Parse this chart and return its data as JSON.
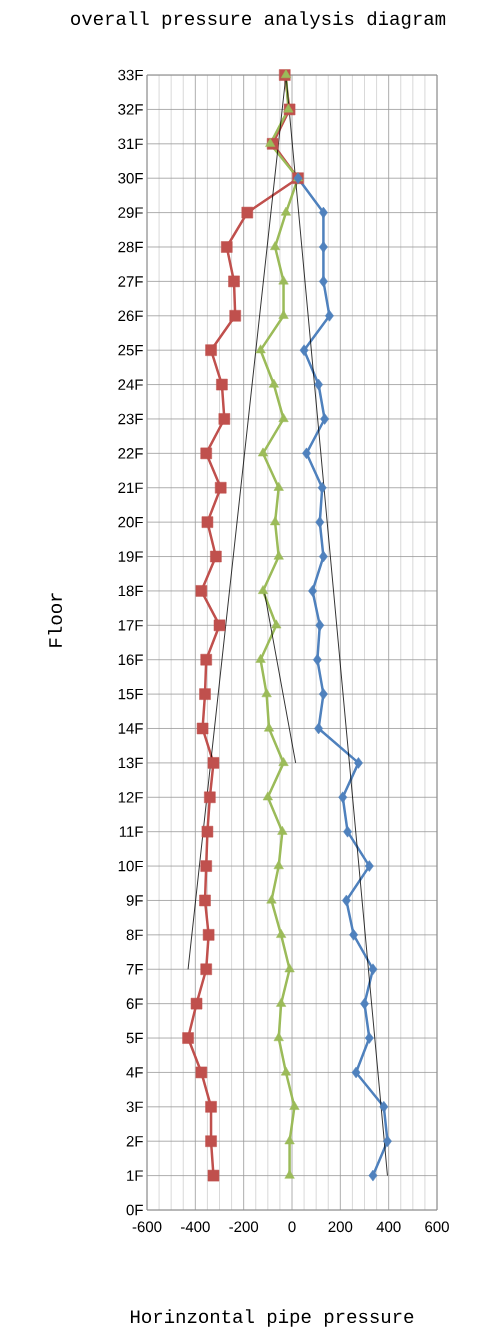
{
  "chart_data": {
    "type": "line",
    "orientation": "horizontal",
    "title": "overall pressure analysis diagram",
    "xlabel": "Horinzontal pipe pressure",
    "ylabel": "Floor",
    "categories": [
      "33F",
      "32F",
      "31F",
      "30F",
      "29F",
      "28F",
      "27F",
      "26F",
      "25F",
      "24F",
      "23F",
      "22F",
      "21F",
      "20F",
      "19F",
      "18F",
      "17F",
      "16F",
      "15F",
      "14F",
      "13F",
      "12F",
      "11F",
      "10F",
      "9F",
      "8F",
      "7F",
      "6F",
      "5F",
      "4F",
      "3F",
      "2F",
      "1F",
      "0F"
    ],
    "series": [
      {
        "color": "#c0504d",
        "marker": "square",
        "values": [
          -30,
          -10,
          -80,
          25,
          -185,
          -270,
          -240,
          -235,
          -335,
          -290,
          -280,
          -355,
          -295,
          -350,
          -315,
          -375,
          -300,
          -355,
          -360,
          -370,
          -325,
          -340,
          -350,
          -355,
          -360,
          -345,
          -355,
          -395,
          -430,
          -375,
          -335,
          -335,
          -325,
          null
        ]
      },
      {
        "color": "#9bbb59",
        "marker": "triangle",
        "values": [
          -25,
          -15,
          -90,
          25,
          -25,
          -70,
          -35,
          -35,
          -130,
          -75,
          -35,
          -120,
          -55,
          -70,
          -55,
          -120,
          -65,
          -130,
          -105,
          -95,
          -35,
          -100,
          -40,
          -55,
          -85,
          -45,
          -10,
          -45,
          -55,
          -25,
          10,
          -10,
          -10,
          null
        ]
      },
      {
        "color": "#4f81bd",
        "marker": "diamond",
        "values": [
          null,
          null,
          null,
          25,
          130,
          130,
          130,
          155,
          50,
          110,
          135,
          60,
          125,
          115,
          130,
          85,
          115,
          105,
          130,
          110,
          275,
          210,
          230,
          320,
          225,
          255,
          335,
          300,
          320,
          265,
          380,
          395,
          335,
          null
        ]
      },
      {
        "type": "line",
        "color": "#000000",
        "marker": "none",
        "values": [
          -25,
          null,
          null,
          null,
          null,
          null,
          null,
          null,
          null,
          null,
          null,
          null,
          null,
          null,
          null,
          null,
          null,
          null,
          null,
          null,
          null,
          null,
          null,
          null,
          null,
          null,
          -430,
          null,
          null,
          null,
          null,
          null,
          null,
          null
        ]
      },
      {
        "type": "line",
        "color": "#000000",
        "marker": "none",
        "values": [
          -25,
          null,
          null,
          null,
          null,
          null,
          null,
          null,
          null,
          null,
          null,
          null,
          null,
          null,
          null,
          null,
          null,
          null,
          null,
          null,
          null,
          null,
          null,
          null,
          null,
          null,
          null,
          null,
          null,
          null,
          null,
          null,
          395,
          null
        ]
      },
      {
        "type": "line",
        "color": "#000000",
        "marker": "none",
        "values": [
          null,
          null,
          null,
          null,
          null,
          null,
          null,
          null,
          null,
          null,
          null,
          null,
          null,
          null,
          null,
          -115,
          null,
          null,
          null,
          null,
          15,
          null,
          null,
          null,
          null,
          null,
          null,
          null,
          null,
          null,
          null,
          null,
          null,
          null
        ]
      }
    ],
    "xlim": [
      -600,
      600
    ],
    "xticks": [
      -600,
      -400,
      -200,
      0,
      200,
      400,
      600
    ],
    "grid": true
  }
}
